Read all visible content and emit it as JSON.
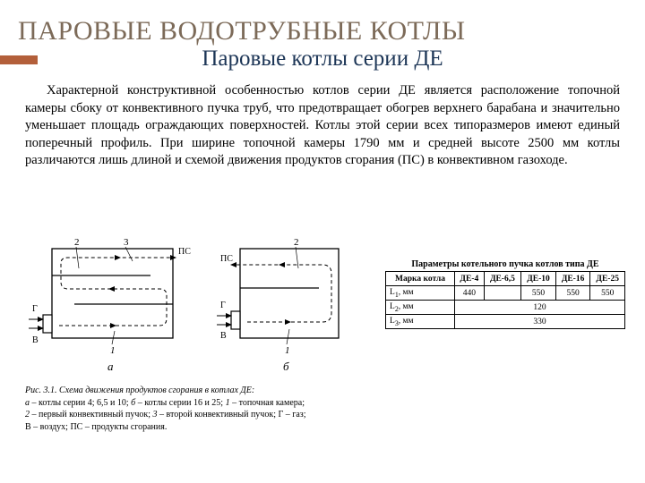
{
  "title": "ПАРОВЫЕ ВОДОТРУБНЫЕ КОТЛЫ",
  "subtitle": "Паровые котлы серии ДЕ",
  "body": "Характерной конструктивной особенностью котлов серии ДЕ является расположение топочной камеры сбоку от конвективного пучка труб, что предотвращает обогрев верхнего барабана и значительно уменьшает площадь ограждающих поверхностей. Котлы этой серии всех типоразмеров имеют единый поперечный профиль. При ширине топочной камеры 1790 мм и средней высоте 2500 мм котлы различаются лишь длиной и схемой движения продуктов сгорания (ПС) в конвективном газоходе.",
  "figure": {
    "labels": {
      "ps": "ПС",
      "g": "Г",
      "v": "В",
      "n1": "1",
      "n2": "2",
      "n3": "3",
      "sub_a": "а",
      "sub_b": "б"
    },
    "style": {
      "stroke": "#000000",
      "fill": "#ffffff",
      "line_width": 1.3,
      "dash": "4 3",
      "label_fontsize_small": 11,
      "label_fontsize_italic": 13,
      "label_fontsize_side": 11
    }
  },
  "caption": {
    "head": "Рис. 3.1. Схема движения продуктов сгорания в котлах ДЕ:",
    "line1_a": "а",
    "line1_rest": " – котлы серии 4; 6,5 и 10; ",
    "line1_b": "б",
    "line1_rest2": " – котлы серии 16 и 25; ",
    "line1_1": "1",
    "line1_rest3": " – топочная камера;",
    "line2_2": "2",
    "line2_rest": " – первый конвективный пучок; ",
    "line2_3": "3",
    "line2_rest2": " – второй конвективный пучок; Г – газ;",
    "line3": "В – воздух; ПС – продукты сгорания."
  },
  "table": {
    "title": "Параметры котельного пучка котлов типа ДЕ",
    "header_label": "Марка котла",
    "columns": [
      "ДЕ-4",
      "ДЕ-6,5",
      "ДЕ-10",
      "ДЕ-16",
      "ДЕ-25"
    ],
    "rows": [
      {
        "label": "L₁, мм",
        "cells": [
          "440",
          "",
          "550",
          "550",
          "550"
        ],
        "span": null
      },
      {
        "label": "L₂, мм",
        "cells": [
          "120"
        ],
        "span": 5
      },
      {
        "label": "L₃, мм",
        "cells": [
          "330"
        ],
        "span": 5
      }
    ],
    "style": {
      "border_color": "#000000",
      "header_bg": "#ffffff",
      "fontsize": 9.5
    }
  },
  "colors": {
    "title": "#7c6a58",
    "subtitle": "#1c3556",
    "accent": "#b35f3a",
    "background": "#ffffff",
    "text": "#000000"
  }
}
